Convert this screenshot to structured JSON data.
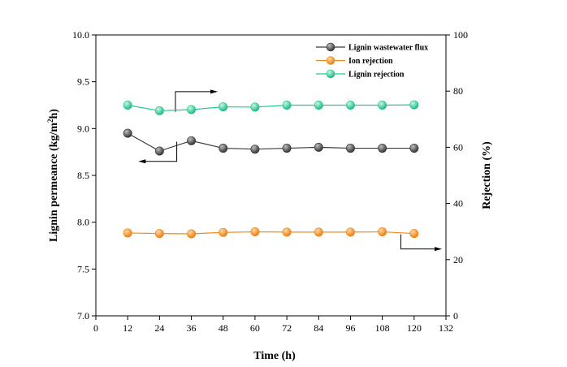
{
  "chart_data": {
    "type": "line",
    "title": "",
    "xlabel": "Time (h)",
    "ylabel_left": "Lignin permeance (kg/m2h)",
    "ylabel_left_parts": {
      "base": "Lignin permeance (kg/m",
      "sup": "2",
      "end": "h)"
    },
    "ylabel_right": "Rejection (%)",
    "xlim": [
      0,
      132
    ],
    "ylim_left": [
      7.0,
      10.0
    ],
    "ylim_right": [
      0,
      100
    ],
    "x_ticks": [
      0,
      12,
      24,
      36,
      48,
      60,
      72,
      84,
      96,
      108,
      120,
      132
    ],
    "y_left_ticks": [
      "7.0",
      "7.5",
      "8.0",
      "8.5",
      "9.0",
      "9.5",
      "10.0"
    ],
    "y_right_ticks": [
      "0",
      "20",
      "40",
      "60",
      "80",
      "100"
    ],
    "legend_position": "top-right",
    "grid": false,
    "x": [
      12,
      24,
      36,
      48,
      60,
      72,
      84,
      96,
      108,
      120
    ],
    "series": [
      {
        "name": "Lignin wastewater flux",
        "axis": "left",
        "color": "#3a3a3a",
        "values": [
          8.95,
          8.76,
          8.87,
          8.79,
          8.78,
          8.79,
          8.8,
          8.79,
          8.79,
          8.79
        ]
      },
      {
        "name": "Ion  rejection",
        "axis": "right",
        "color": "#f08a1c",
        "values": [
          29.5,
          29.3,
          29.2,
          29.7,
          29.9,
          29.8,
          29.8,
          29.8,
          29.9,
          29.3
        ]
      },
      {
        "name": "Lignin rejection",
        "axis": "right",
        "color": "#22c98d",
        "values": [
          75.0,
          73.0,
          73.4,
          74.4,
          74.3,
          75.0,
          75.0,
          75.0,
          75.0,
          75.1
        ]
      }
    ]
  }
}
